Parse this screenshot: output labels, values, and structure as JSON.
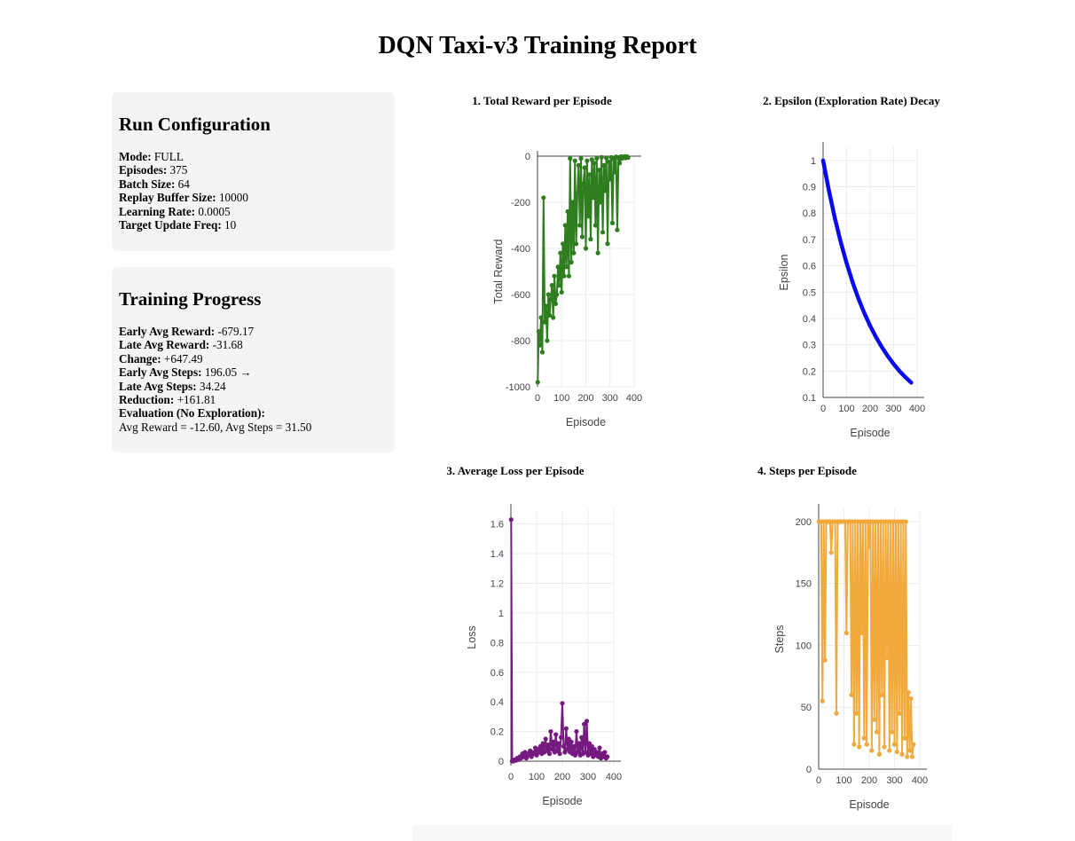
{
  "page": {
    "title": "DQN Taxi-v3 Training Report"
  },
  "config": {
    "heading": "Run Configuration",
    "rows": [
      {
        "label": "Mode:",
        "value": "FULL"
      },
      {
        "label": "Episodes:",
        "value": "375"
      },
      {
        "label": "Batch Size:",
        "value": "64"
      },
      {
        "label": "Replay Buffer Size:",
        "value": "10000"
      },
      {
        "label": "Learning Rate:",
        "value": "0.0005"
      },
      {
        "label": "Target Update Freq:",
        "value": "10"
      }
    ]
  },
  "progress": {
    "heading": "Training Progress",
    "rows": [
      {
        "label": "Early Avg Reward:",
        "value": "-679.17"
      },
      {
        "label": "Late Avg Reward:",
        "value": "-31.68"
      },
      {
        "label": "Change:",
        "value": "+647.49"
      },
      {
        "label": "Early Avg Steps:",
        "value": "196.05 →"
      },
      {
        "label": "Late Avg Steps:",
        "value": "34.24"
      },
      {
        "label": "Reduction:",
        "value": "+161.81"
      },
      {
        "label": "Evaluation (No Exploration):",
        "value": ""
      }
    ],
    "eval_line": "Avg Reward = -12.60, Avg Steps = 31.50"
  },
  "chart_data": [
    {
      "type": "line",
      "title": "1. Total Reward per Episode",
      "xlabel": "Episode",
      "ylabel": "Total Reward",
      "color": "#2e7d1f",
      "markers": true,
      "xlim": [
        0,
        400
      ],
      "ylim": [
        -1000,
        0
      ],
      "xticks": [
        0,
        100,
        200,
        300,
        400
      ],
      "yticks": [
        0,
        -200,
        -400,
        -600,
        -800,
        -1000
      ],
      "x": [
        1,
        5,
        10,
        15,
        20,
        25,
        30,
        35,
        40,
        45,
        50,
        55,
        60,
        65,
        70,
        75,
        80,
        85,
        90,
        95,
        100,
        105,
        110,
        115,
        120,
        125,
        130,
        135,
        140,
        145,
        150,
        155,
        160,
        165,
        170,
        175,
        180,
        185,
        190,
        195,
        200,
        205,
        210,
        215,
        220,
        225,
        230,
        235,
        240,
        245,
        250,
        255,
        260,
        265,
        270,
        275,
        280,
        285,
        290,
        295,
        300,
        305,
        310,
        315,
        320,
        325,
        330,
        335,
        340,
        345,
        350,
        355,
        360,
        365,
        370,
        375
      ],
      "y": [
        -980,
        -760,
        -820,
        -700,
        -850,
        -180,
        -720,
        -650,
        -800,
        -600,
        -690,
        -620,
        -560,
        -700,
        -520,
        -640,
        -600,
        -480,
        -560,
        -420,
        -590,
        -380,
        -520,
        -300,
        -480,
        -240,
        -520,
        -10,
        -460,
        -200,
        -420,
        -20,
        -380,
        -160,
        -40,
        -300,
        -10,
        -350,
        -120,
        -50,
        -400,
        -20,
        -260,
        -80,
        -360,
        -15,
        -180,
        -30,
        -300,
        -10,
        -420,
        -60,
        -200,
        -5,
        -330,
        -40,
        -150,
        -8,
        -380,
        -25,
        -100,
        -5,
        -290,
        -12,
        -70,
        -3,
        -320,
        -6,
        -30,
        -2,
        -10,
        -4,
        -1,
        -8,
        -2,
        -6
      ]
    },
    {
      "type": "line",
      "title": "2. Epsilon (Exploration Rate) Decay",
      "xlabel": "Episode",
      "ylabel": "Epsilon",
      "color": "#0a0aee",
      "markers": false,
      "xlim": [
        0,
        400
      ],
      "ylim": [
        0.1,
        1.05
      ],
      "xticks": [
        0,
        100,
        200,
        300,
        400
      ],
      "yticks": [
        1,
        0.9,
        0.8,
        0.7,
        0.6,
        0.5,
        0.4,
        0.3,
        0.2,
        0.1
      ],
      "x": [
        0,
        25,
        50,
        75,
        100,
        125,
        150,
        175,
        200,
        225,
        250,
        275,
        300,
        325,
        350,
        375
      ],
      "y": [
        1.0,
        0.884,
        0.781,
        0.69,
        0.61,
        0.539,
        0.476,
        0.421,
        0.372,
        0.329,
        0.291,
        0.257,
        0.227,
        0.2,
        0.177,
        0.156
      ]
    },
    {
      "type": "line",
      "title": "3. Average Loss per Episode",
      "xlabel": "Episode",
      "ylabel": "Loss",
      "color": "#751a80",
      "markers": true,
      "xlim": [
        0,
        400
      ],
      "ylim": [
        -0.03,
        1.7
      ],
      "xticks": [
        0,
        100,
        200,
        300,
        400
      ],
      "yticks": [
        1.6,
        1.4,
        1.2,
        1,
        0.8,
        0.6,
        0.4,
        0.2,
        0
      ],
      "x": [
        1,
        5,
        10,
        15,
        20,
        25,
        30,
        35,
        40,
        45,
        50,
        55,
        60,
        65,
        70,
        75,
        80,
        85,
        90,
        95,
        100,
        105,
        110,
        115,
        120,
        125,
        130,
        135,
        140,
        145,
        150,
        155,
        160,
        165,
        170,
        175,
        180,
        185,
        190,
        195,
        200,
        205,
        210,
        215,
        220,
        225,
        230,
        235,
        240,
        245,
        250,
        255,
        260,
        265,
        270,
        275,
        280,
        285,
        290,
        295,
        300,
        305,
        310,
        315,
        320,
        325,
        330,
        335,
        340,
        345,
        350,
        355,
        360,
        365,
        370,
        375
      ],
      "y": [
        1.63,
        0.0,
        0.0,
        0.01,
        0.005,
        0.02,
        0.01,
        0.03,
        0.02,
        0.05,
        0.03,
        0.06,
        0.02,
        0.05,
        0.04,
        0.07,
        0.03,
        0.06,
        0.05,
        0.09,
        0.04,
        0.08,
        0.06,
        0.1,
        0.05,
        0.12,
        0.06,
        0.15,
        0.07,
        0.11,
        0.05,
        0.2,
        0.08,
        0.13,
        0.06,
        0.18,
        0.07,
        0.12,
        0.05,
        0.16,
        0.39,
        0.1,
        0.06,
        0.22,
        0.08,
        0.15,
        0.06,
        0.13,
        0.05,
        0.1,
        0.04,
        0.2,
        0.06,
        0.12,
        0.04,
        0.16,
        0.05,
        0.25,
        0.06,
        0.27,
        0.04,
        0.12,
        0.05,
        0.1,
        0.03,
        0.08,
        0.04,
        0.06,
        0.03,
        0.09,
        0.02,
        0.05,
        0.03,
        0.06,
        0.02,
        0.03
      ]
    },
    {
      "type": "line",
      "title": "4. Steps per Episode",
      "xlabel": "Episode",
      "ylabel": "Steps",
      "color": "#f0a93a",
      "markers": true,
      "xlim": [
        0,
        400
      ],
      "ylim": [
        0,
        210
      ],
      "xticks": [
        0,
        100,
        200,
        300,
        400
      ],
      "yticks": [
        200,
        150,
        100,
        50,
        0
      ],
      "x": [
        1,
        5,
        10,
        15,
        20,
        25,
        30,
        35,
        40,
        45,
        50,
        55,
        60,
        65,
        70,
        75,
        80,
        85,
        90,
        95,
        100,
        105,
        110,
        115,
        120,
        125,
        130,
        135,
        140,
        145,
        150,
        155,
        160,
        165,
        170,
        175,
        180,
        185,
        190,
        195,
        200,
        205,
        210,
        215,
        220,
        225,
        230,
        235,
        240,
        245,
        250,
        255,
        260,
        265,
        270,
        275,
        280,
        285,
        290,
        295,
        300,
        305,
        310,
        315,
        320,
        325,
        330,
        335,
        340,
        345,
        350,
        355,
        360,
        365,
        370,
        375
      ],
      "y": [
        200,
        200,
        200,
        55,
        200,
        88,
        200,
        200,
        200,
        200,
        175,
        200,
        200,
        200,
        45,
        200,
        200,
        200,
        200,
        200,
        200,
        200,
        110,
        200,
        200,
        200,
        60,
        200,
        20,
        200,
        45,
        200,
        18,
        200,
        110,
        200,
        25,
        200,
        20,
        200,
        180,
        200,
        15,
        200,
        40,
        200,
        30,
        200,
        12,
        200,
        60,
        200,
        18,
        200,
        90,
        200,
        15,
        200,
        30,
        200,
        20,
        200,
        14,
        200,
        45,
        200,
        12,
        200,
        25,
        200,
        10,
        62,
        15,
        57,
        10,
        20
      ]
    }
  ]
}
